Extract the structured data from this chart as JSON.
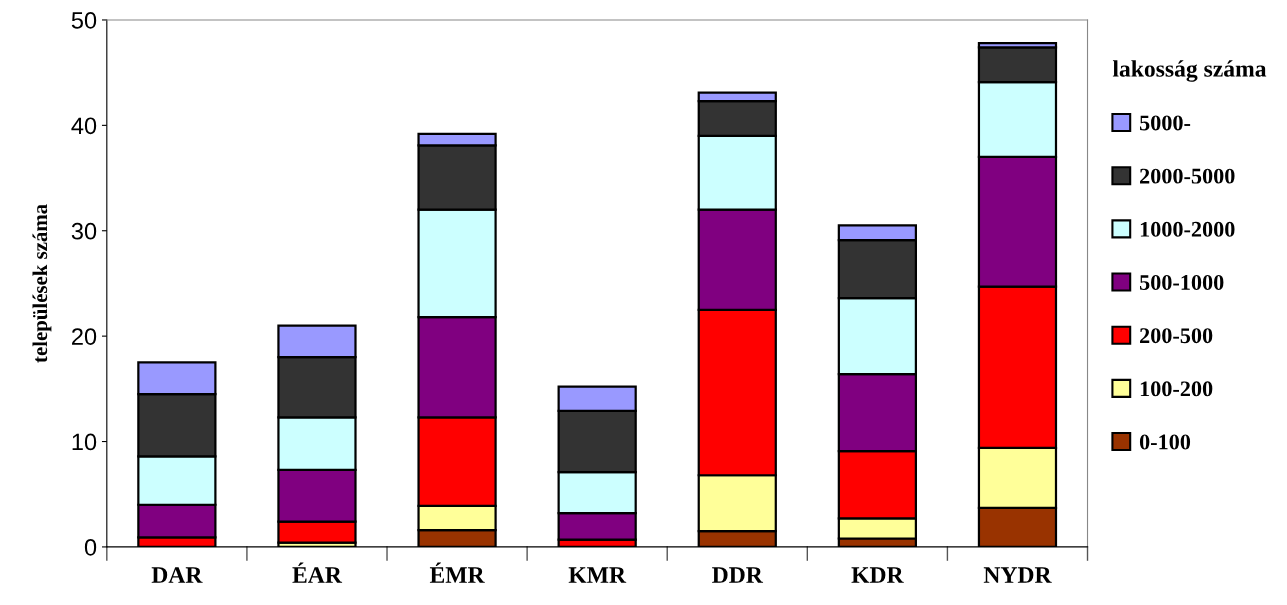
{
  "chart_data": {
    "type": "bar",
    "stacked": true,
    "categories": [
      "DAR",
      "ÉAR",
      "ÉMR",
      "KMR",
      "DDR",
      "KDR",
      "NYDR"
    ],
    "ylabel": "települések száma",
    "legend_title": "lakosság száma",
    "legend": "right",
    "ylim": [
      0,
      50
    ],
    "yticks": [
      0,
      10,
      20,
      30,
      40,
      50
    ],
    "grid": false,
    "series": [
      {
        "name": "0-100",
        "color": "#993300",
        "values": [
          null,
          null,
          1.6,
          null,
          1.5,
          0.8,
          3.7
        ]
      },
      {
        "name": "100-200",
        "color": "#ffff99",
        "values": [
          null,
          0.4,
          2.3,
          null,
          5.3,
          1.9,
          5.7
        ]
      },
      {
        "name": "200-500",
        "color": "#ff0000",
        "values": [
          0.9,
          2.0,
          8.4,
          0.7,
          15.7,
          6.4,
          15.3
        ]
      },
      {
        "name": "500-1000",
        "color": "#800080",
        "values": [
          3.1,
          4.9,
          9.5,
          2.5,
          9.5,
          7.3,
          12.3
        ]
      },
      {
        "name": "1000-2000",
        "color": "#ccffff",
        "values": [
          4.6,
          5.0,
          10.2,
          3.9,
          7.0,
          7.2,
          7.1
        ]
      },
      {
        "name": "2000-5000",
        "color": "#333333",
        "values": [
          5.9,
          5.7,
          6.1,
          5.8,
          3.3,
          5.5,
          3.3
        ]
      },
      {
        "name": "5000-",
        "color": "#9999ff",
        "values": [
          3.0,
          3.0,
          1.1,
          2.3,
          0.8,
          1.4,
          0.4
        ]
      }
    ]
  }
}
